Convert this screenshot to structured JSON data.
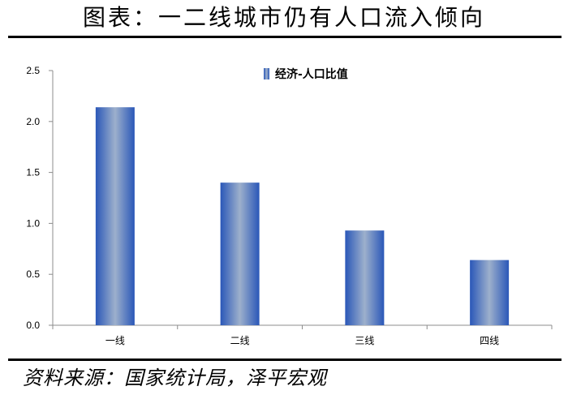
{
  "header": {
    "title": "图表：一二线城市仍有人口流入倾向"
  },
  "footer": {
    "source": "资料来源：国家统计局，泽平宏观"
  },
  "colors": {
    "bar_edge": "#2a57b8",
    "bar_center": "#9db0cc",
    "axis": "#8c8c8c"
  },
  "chart_data": {
    "type": "bar",
    "categories": [
      "一线",
      "二线",
      "三线",
      "四线"
    ],
    "series": [
      {
        "name": "经济-人口比值",
        "values": [
          2.14,
          1.4,
          0.93,
          0.64
        ]
      }
    ],
    "ylim": [
      0,
      2.5
    ],
    "yticks": [
      0.0,
      0.5,
      1.0,
      1.5,
      2.0,
      2.5
    ],
    "ytick_labels": [
      "0.0",
      "0.5",
      "1.0",
      "1.5",
      "2.0",
      "2.5"
    ],
    "legend_position": "top-right",
    "grid": false
  }
}
